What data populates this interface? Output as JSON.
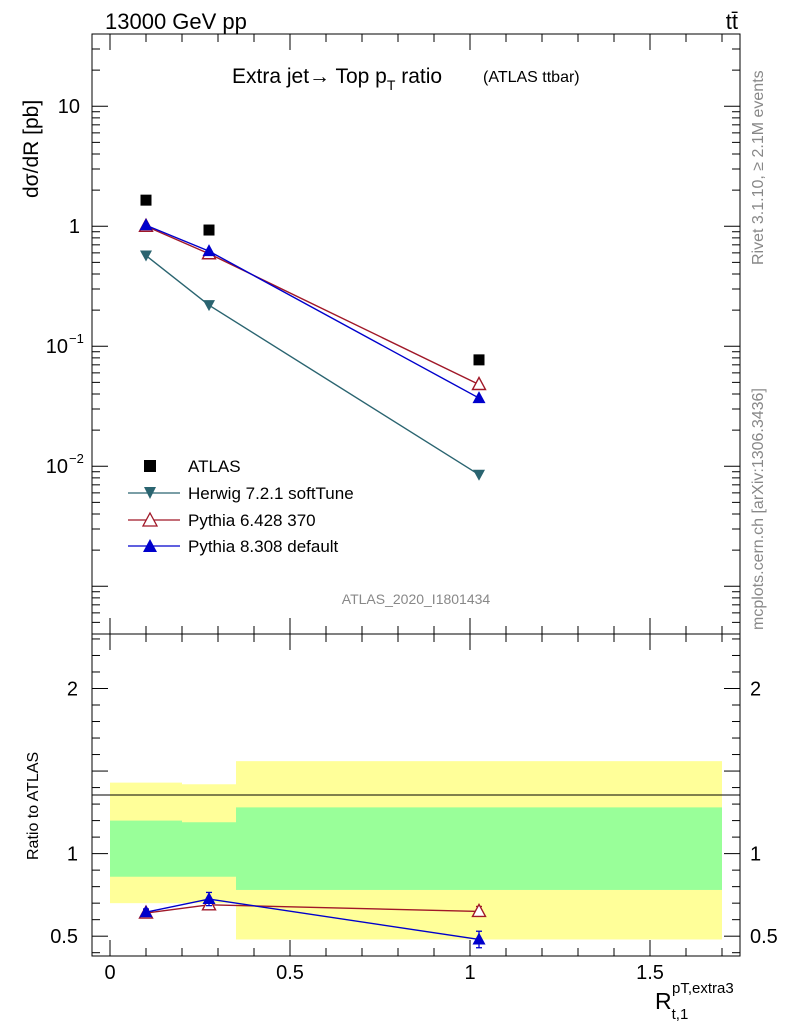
{
  "header": {
    "energy_label": "13000 GeV pp",
    "process_label": "tt̄"
  },
  "side_labels": {
    "rivet": "Rivet 3.1.10, ≥ 2.1M events",
    "mcplots": "mcplots.cern.ch [arXiv:1306.3436]"
  },
  "chart_data": [
    {
      "type": "scatter",
      "title_main": "Extra jet→ Top p",
      "title_sub": "T",
      "title_tail": " ratio",
      "title_small": "(ATLAS ttbar)",
      "analysis_tag": "ATLAS_2020_I1801434",
      "ylabel": "dσ/dR [pb]",
      "yscale": "log",
      "ylim": [
        0.0004,
        40
      ],
      "y_ticks": [
        {
          "value": 10,
          "base": "10",
          "exp": ""
        },
        {
          "value": 1,
          "base": "1",
          "exp": ""
        },
        {
          "value": 0.1,
          "base": "10",
          "exp": "−1"
        },
        {
          "value": 0.01,
          "base": "10",
          "exp": "−2"
        }
      ],
      "series": [
        {
          "name": "ATLAS",
          "color": "#000000",
          "marker": "square",
          "line": false,
          "x": [
            0.1,
            0.275,
            1.025
          ],
          "values": [
            1.65,
            0.93,
            0.077
          ]
        },
        {
          "name": "Herwig 7.2.1 softTune",
          "color": "#2a6470",
          "marker": "triangle-down",
          "line": true,
          "x": [
            0.1,
            0.275,
            1.025
          ],
          "values": [
            0.57,
            0.22,
            0.0085
          ]
        },
        {
          "name": "Pythia 6.428 370",
          "color": "#a01828",
          "marker": "triangle-up-open",
          "line": true,
          "x": [
            0.1,
            0.275,
            1.025
          ],
          "values": [
            1.0,
            0.59,
            0.048
          ]
        },
        {
          "name": "Pythia 8.308 default",
          "color": "#0000cc",
          "marker": "triangle-up",
          "line": true,
          "x": [
            0.1,
            0.275,
            1.025
          ],
          "values": [
            1.02,
            0.62,
            0.037
          ]
        }
      ]
    },
    {
      "type": "scatter",
      "ylabel": "Ratio to ATLAS",
      "ylim": [
        0.38,
        2.33
      ],
      "y_ticks": [
        0.5,
        1,
        2
      ],
      "xlim": [
        -0.05,
        1.75
      ],
      "x_ticks": [
        0,
        0.5,
        1,
        1.5
      ],
      "xlabel_main": "R",
      "xlabel_sub": "t,1",
      "xlabel_sup": "pT,extra3",
      "bands": [
        {
          "x_range": [
            0,
            0.2
          ],
          "yellow": [
            0.7,
            1.43
          ],
          "green": [
            0.86,
            1.2
          ]
        },
        {
          "x_range": [
            0.2,
            0.35
          ],
          "yellow": [
            0.7,
            1.42
          ],
          "green": [
            0.86,
            1.19
          ]
        },
        {
          "x_range": [
            0.35,
            1.7
          ],
          "yellow": [
            0.48,
            1.56
          ],
          "green": [
            0.78,
            1.28
          ]
        }
      ],
      "series": [
        {
          "name": "Pythia 6.428 370",
          "color": "#a01828",
          "marker": "triangle-up-open",
          "x": [
            0.1,
            0.275,
            1.025
          ],
          "values": [
            0.64,
            0.69,
            0.65
          ],
          "err": [
            0.02,
            0.02,
            0.03
          ]
        },
        {
          "name": "Pythia 8.308 default",
          "color": "#0000cc",
          "marker": "triangle-up",
          "x": [
            0.1,
            0.275,
            1.025
          ],
          "values": [
            0.645,
            0.725,
            0.48
          ],
          "err": [
            0.02,
            0.04,
            0.05
          ]
        }
      ]
    }
  ]
}
